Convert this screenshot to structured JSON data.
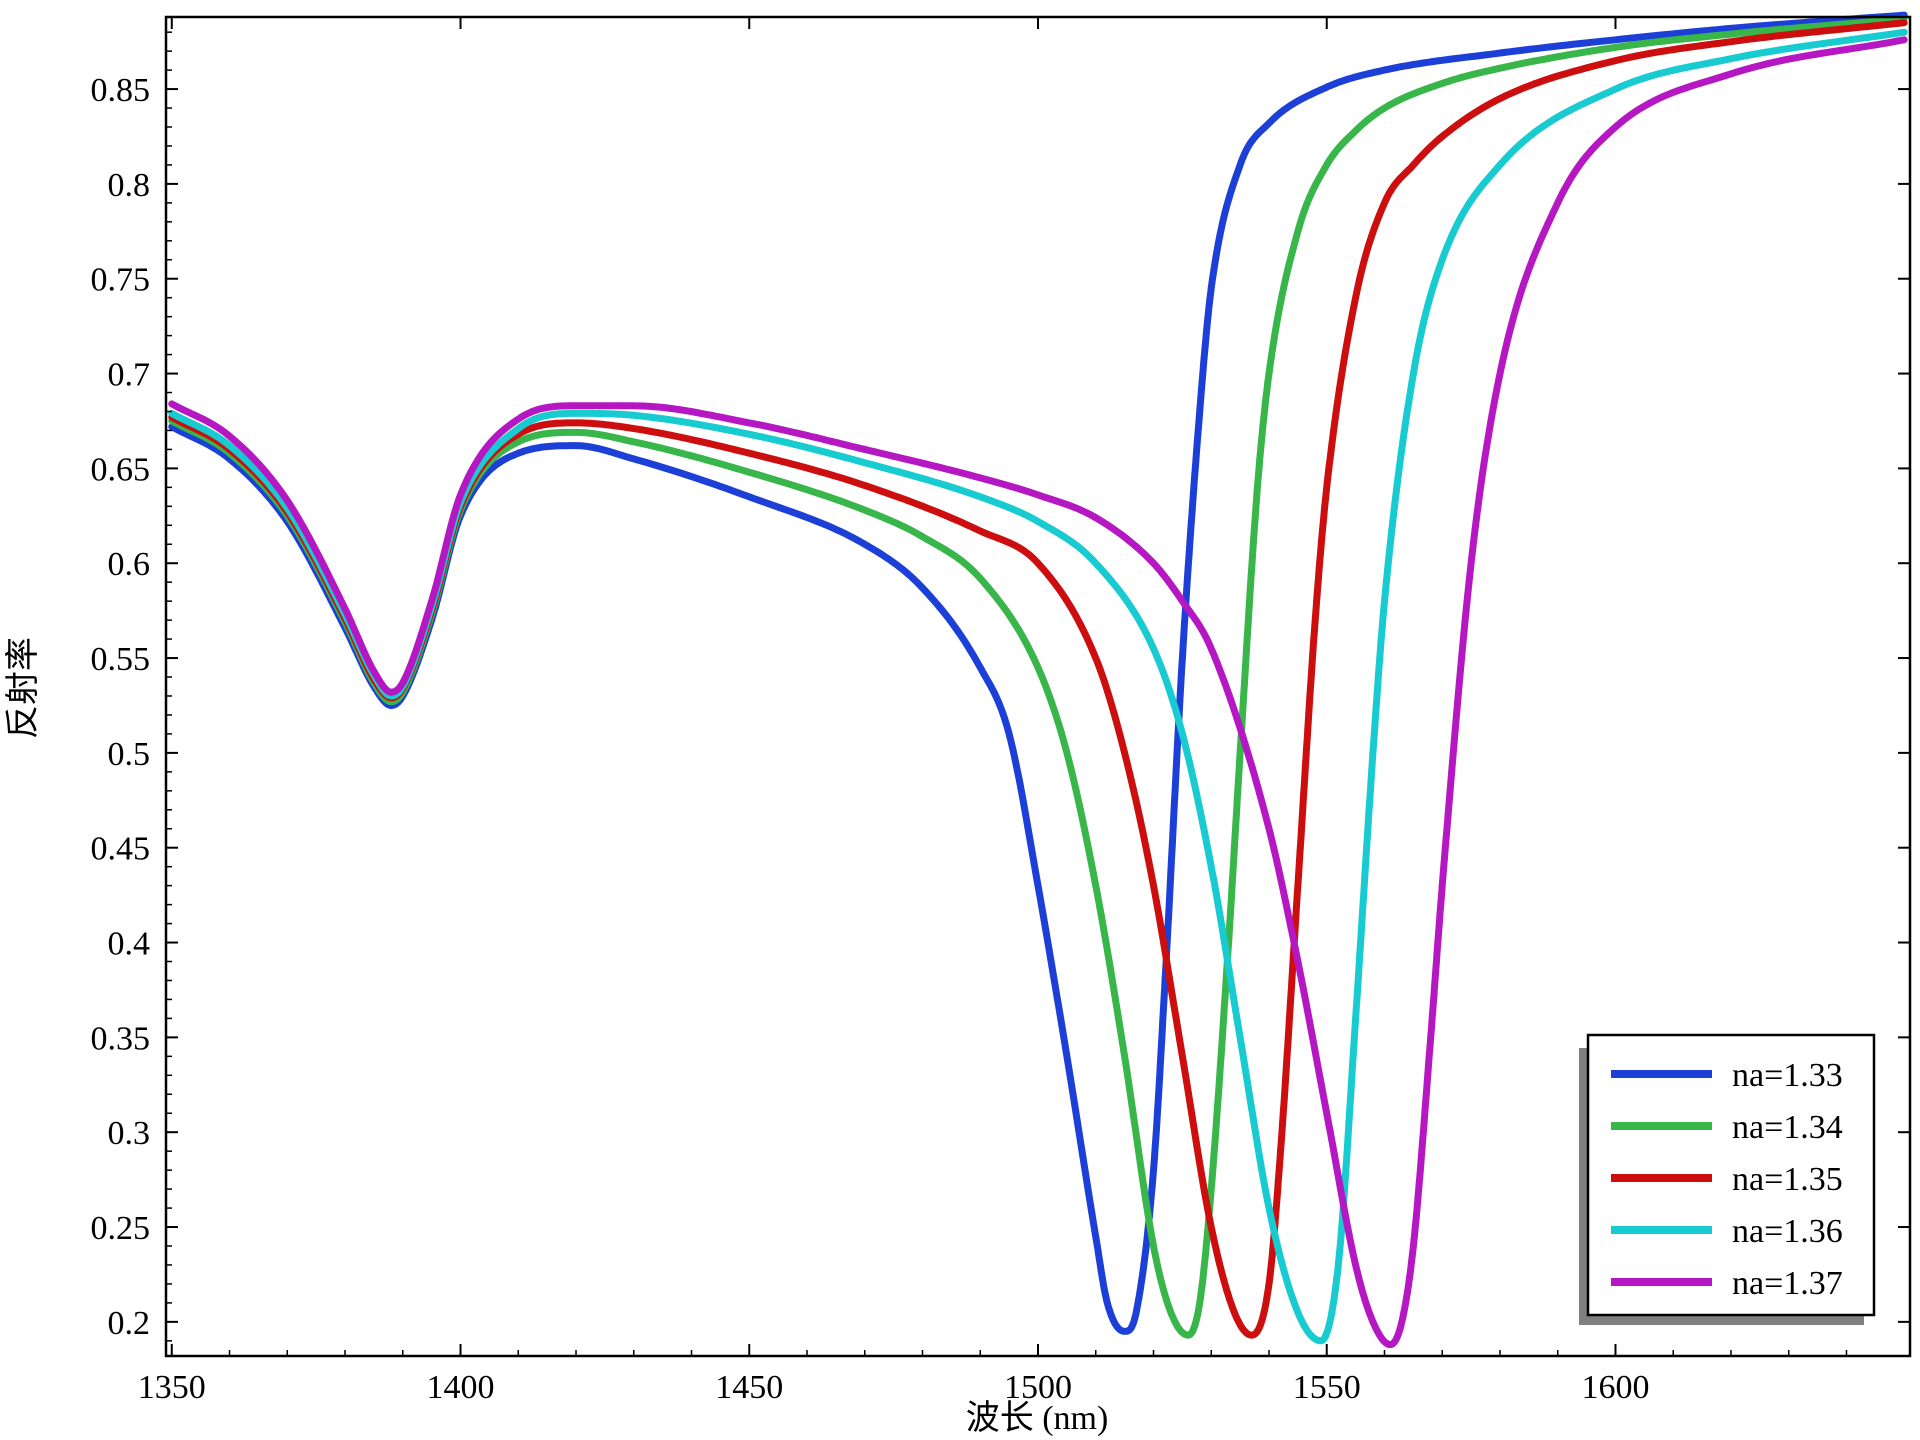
{
  "chart_data": {
    "type": "line",
    "title": "",
    "xlabel": "波长 (nm)",
    "ylabel": "反射率",
    "xlim": [
      1349,
      1651
    ],
    "ylim": [
      0.182,
      0.888
    ],
    "xticks": [
      1350,
      1400,
      1450,
      1500,
      1550,
      1600
    ],
    "xtick_labels": [
      "1350",
      "1400",
      "1450",
      "1500",
      "1550",
      "1600"
    ],
    "yticks": [
      0.2,
      0.25,
      0.3,
      0.35,
      0.4,
      0.45,
      0.5,
      0.55,
      0.6,
      0.65,
      0.7,
      0.75,
      0.8,
      0.85
    ],
    "ytick_labels": [
      "0.2",
      "0.25",
      "0.3",
      "0.35",
      "0.4",
      "0.45",
      "0.5",
      "0.55",
      "0.6",
      "0.65",
      "0.7",
      "0.75",
      "0.8",
      "0.85"
    ],
    "grid": false,
    "legend_position": "bottom-right",
    "series": [
      {
        "name": "na=1.33",
        "color": "#1c3fd8",
        "x": [
          1350,
          1360,
          1370,
          1380,
          1385,
          1388,
          1390,
          1395,
          1400,
          1410,
          1420,
          1430,
          1450,
          1470,
          1480,
          1490,
          1495,
          1500,
          1505,
          1510,
          1512,
          1515,
          1517,
          1520,
          1522,
          1525,
          1528,
          1530,
          1535,
          1540,
          1550,
          1560,
          1580,
          1600,
          1620,
          1650
        ],
        "y": [
          0.672,
          0.655,
          0.622,
          0.566,
          0.535,
          0.525,
          0.53,
          0.57,
          0.625,
          0.658,
          0.662,
          0.655,
          0.635,
          0.61,
          0.587,
          0.545,
          0.51,
          0.43,
          0.34,
          0.245,
          0.21,
          0.195,
          0.205,
          0.28,
          0.38,
          0.55,
          0.68,
          0.745,
          0.81,
          0.832,
          0.851,
          0.86,
          0.869,
          0.876,
          0.882,
          0.889
        ]
      },
      {
        "name": "na=1.34",
        "color": "#38b64a",
        "x": [
          1350,
          1360,
          1370,
          1380,
          1385,
          1388,
          1390,
          1395,
          1400,
          1410,
          1420,
          1430,
          1450,
          1470,
          1480,
          1490,
          1500,
          1505,
          1510,
          1515,
          1520,
          1523,
          1526,
          1528,
          1530,
          1533,
          1535,
          1538,
          1540,
          1545,
          1550,
          1555,
          1560,
          1570,
          1580,
          1600,
          1620,
          1650
        ],
        "y": [
          0.675,
          0.658,
          0.625,
          0.569,
          0.537,
          0.527,
          0.532,
          0.573,
          0.628,
          0.664,
          0.669,
          0.664,
          0.648,
          0.628,
          0.614,
          0.592,
          0.545,
          0.5,
          0.43,
          0.34,
          0.24,
          0.205,
          0.193,
          0.21,
          0.27,
          0.4,
          0.5,
          0.64,
          0.7,
          0.775,
          0.81,
          0.828,
          0.84,
          0.853,
          0.861,
          0.872,
          0.879,
          0.887
        ]
      },
      {
        "name": "na=1.35",
        "color": "#cc0e0e",
        "x": [
          1350,
          1360,
          1370,
          1380,
          1385,
          1388,
          1390,
          1395,
          1400,
          1410,
          1420,
          1430,
          1450,
          1470,
          1490,
          1500,
          1510,
          1515,
          1520,
          1525,
          1530,
          1534,
          1537,
          1540,
          1542,
          1545,
          1548,
          1550,
          1555,
          1560,
          1565,
          1570,
          1580,
          1600,
          1620,
          1650
        ],
        "y": [
          0.677,
          0.66,
          0.627,
          0.571,
          0.539,
          0.529,
          0.534,
          0.575,
          0.63,
          0.668,
          0.674,
          0.671,
          0.658,
          0.641,
          0.617,
          0.6,
          0.55,
          0.5,
          0.43,
          0.34,
          0.25,
          0.205,
          0.193,
          0.22,
          0.29,
          0.43,
          0.57,
          0.64,
          0.74,
          0.79,
          0.81,
          0.825,
          0.845,
          0.865,
          0.875,
          0.885
        ]
      },
      {
        "name": "na=1.36",
        "color": "#17cbd1",
        "x": [
          1350,
          1360,
          1370,
          1380,
          1385,
          1388,
          1390,
          1395,
          1400,
          1410,
          1420,
          1430,
          1450,
          1470,
          1490,
          1500,
          1510,
          1520,
          1525,
          1530,
          1535,
          1540,
          1545,
          1549,
          1552,
          1555,
          1558,
          1560,
          1565,
          1570,
          1580,
          1600,
          1620,
          1650
        ],
        "y": [
          0.679,
          0.662,
          0.629,
          0.573,
          0.541,
          0.53,
          0.535,
          0.577,
          0.632,
          0.671,
          0.679,
          0.678,
          0.668,
          0.653,
          0.635,
          0.622,
          0.6,
          0.555,
          0.51,
          0.44,
          0.35,
          0.26,
          0.205,
          0.19,
          0.23,
          0.36,
          0.5,
          0.58,
          0.7,
          0.76,
          0.81,
          0.85,
          0.866,
          0.88
        ]
      },
      {
        "name": "na=1.37",
        "color": "#b518c2",
        "x": [
          1350,
          1360,
          1370,
          1380,
          1385,
          1388,
          1390,
          1395,
          1400,
          1410,
          1420,
          1430,
          1450,
          1470,
          1490,
          1500,
          1510,
          1520,
          1525,
          1530,
          1540,
          1545,
          1550,
          1555,
          1558,
          1561,
          1563,
          1565,
          1568,
          1570,
          1575,
          1580,
          1590,
          1600,
          1620,
          1650
        ],
        "y": [
          0.684,
          0.667,
          0.633,
          0.576,
          0.543,
          0.532,
          0.537,
          0.58,
          0.636,
          0.676,
          0.683,
          0.683,
          0.674,
          0.66,
          0.645,
          0.636,
          0.624,
          0.6,
          0.58,
          0.555,
          0.46,
          0.39,
          0.31,
          0.23,
          0.2,
          0.188,
          0.2,
          0.24,
          0.35,
          0.43,
          0.6,
          0.7,
          0.79,
          0.83,
          0.858,
          0.876
        ]
      }
    ]
  }
}
